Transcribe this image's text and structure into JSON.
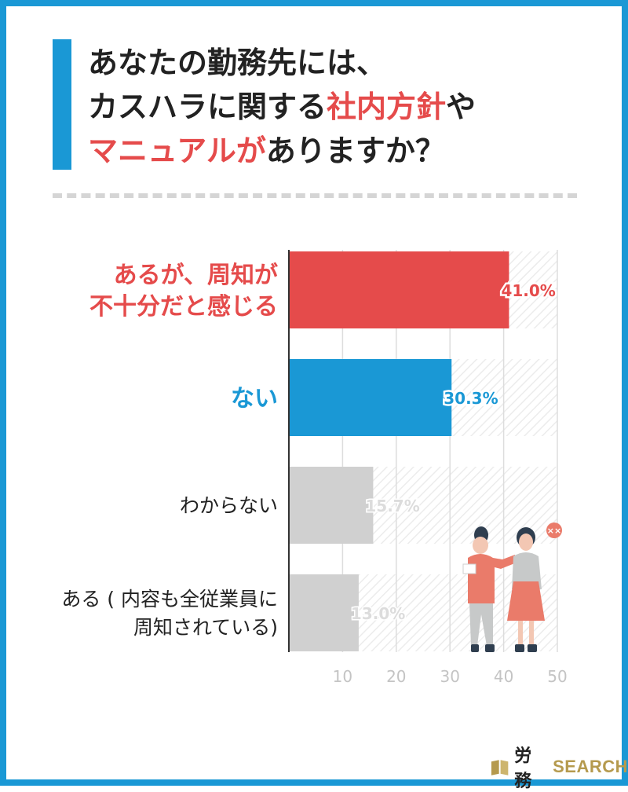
{
  "title": {
    "line1": "あなたの勤務先には、",
    "line2_a": "カスハラに関する",
    "line2_b": "社内方針",
    "line2_c": "や",
    "line3_a": "マニュアルが",
    "line3_b": "ありますか？"
  },
  "logo": {
    "ja": "労務",
    "en": "SEARCH"
  },
  "colors": {
    "accent_blue": "#1a98d5",
    "accent_red": "#e54b4b",
    "bar_gray": "#d0d0d0",
    "grid": "#dddddd"
  },
  "chart_data": {
    "type": "bar",
    "orientation": "horizontal",
    "categories": [
      [
        "あるが、周知が",
        "不十分だと感じる"
      ],
      [
        "ない"
      ],
      [
        "わからない"
      ],
      [
        "ある ( 内容も全従業員に",
        "周知されている)"
      ]
    ],
    "values": [
      41.0,
      30.3,
      15.7,
      13.0
    ],
    "value_labels": [
      "41.0%",
      "30.3%",
      "15.7%",
      "13.0%"
    ],
    "bar_colors": [
      "#e54b4b",
      "#1a98d5",
      "#d0d0d0",
      "#d0d0d0"
    ],
    "label_colors": [
      "#e54b4b",
      "#1a98d5",
      "#222222",
      "#222222"
    ],
    "label_bold": [
      true,
      true,
      false,
      false
    ],
    "xlim": [
      0,
      50
    ],
    "xticks": [
      10,
      20,
      30,
      40,
      50
    ],
    "xlabel": "",
    "ylabel": "",
    "grid": true
  }
}
